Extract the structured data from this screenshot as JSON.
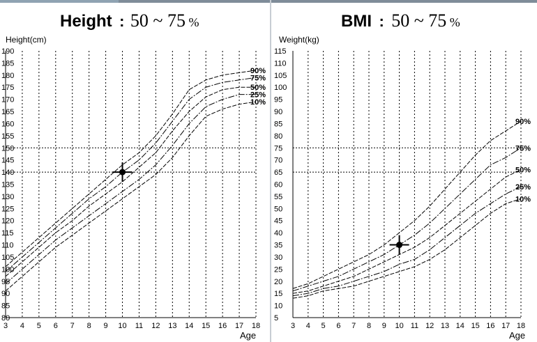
{
  "chart_data": [
    {
      "type": "line",
      "title": {
        "main": "Height",
        "sep": ":",
        "range": "50 ~ 75",
        "pct": "%"
      },
      "ylabel": "Height(cm)",
      "xlabel": "Age",
      "x": [
        3,
        4,
        5,
        6,
        7,
        8,
        9,
        10,
        11,
        12,
        13,
        14,
        15,
        16,
        17,
        18
      ],
      "x_tick_labels": [
        "3",
        "4",
        "5",
        "6",
        "7",
        "8",
        "9",
        "10",
        "11",
        "12",
        "13",
        "14",
        "15",
        "16",
        "17",
        "18"
      ],
      "xlim": [
        3,
        18
      ],
      "ylim": [
        80,
        190
      ],
      "yticks": [
        80,
        85,
        90,
        95,
        100,
        105,
        110,
        115,
        120,
        125,
        130,
        135,
        140,
        145,
        150,
        155,
        160,
        165,
        170,
        175,
        180,
        185,
        190
      ],
      "y_tick_labels": [
        "80",
        "85",
        "90",
        "95",
        "100",
        "105",
        "110",
        "115",
        "120",
        "125",
        "130",
        "135",
        "140",
        "145",
        "150",
        "155",
        "160",
        "165",
        "170",
        "175",
        "180",
        "185",
        "190"
      ],
      "series": [
        {
          "name": "10%",
          "values": [
            91,
            97,
            103,
            109,
            114,
            119,
            124,
            129,
            134,
            139,
            146,
            155,
            163,
            166,
            168,
            169
          ]
        },
        {
          "name": "25%",
          "values": [
            94,
            100,
            106,
            112,
            117,
            122,
            127,
            132,
            137,
            143,
            151,
            160,
            167,
            170,
            172,
            172
          ]
        },
        {
          "name": "50%",
          "values": [
            97,
            103,
            109,
            115,
            120,
            126,
            131,
            136,
            142,
            148,
            157,
            165,
            171,
            174,
            175,
            175
          ]
        },
        {
          "name": "75%",
          "values": [
            99,
            105,
            111,
            117,
            123,
            129,
            134,
            140,
            145,
            152,
            161,
            170,
            175,
            177,
            178,
            179
          ]
        },
        {
          "name": "90%",
          "values": [
            101,
            107,
            113,
            119,
            125,
            131,
            137,
            143,
            148,
            155,
            164,
            174,
            178,
            180,
            181,
            182
          ]
        }
      ],
      "marker": {
        "x": 10,
        "y": 140
      },
      "reference_lines": {
        "horizontal": [
          140,
          150
        ],
        "vertical": [
          10
        ]
      },
      "grid": "vertical-dashed",
      "legend": "right-end-labels"
    },
    {
      "type": "line",
      "title": {
        "main": "BMI",
        "sep": ":",
        "range": "50 ~ 75",
        "pct": "%"
      },
      "ylabel": "Weight(kg)",
      "xlabel": "Age",
      "x": [
        3,
        4,
        5,
        6,
        7,
        8,
        9,
        10,
        11,
        12,
        13,
        14,
        15,
        16,
        17,
        18
      ],
      "x_tick_labels": [
        "3",
        "4",
        "5",
        "6",
        "7",
        "8",
        "9",
        "10",
        "11",
        "12",
        "13",
        "14",
        "15",
        "16",
        "17",
        "18"
      ],
      "xlim": [
        3,
        18
      ],
      "ylim": [
        5,
        115
      ],
      "yticks": [
        5,
        10,
        15,
        20,
        25,
        30,
        35,
        40,
        45,
        50,
        55,
        60,
        65,
        70,
        75,
        80,
        85,
        90,
        95,
        100,
        105,
        110,
        115
      ],
      "y_tick_labels": [
        "5",
        "10",
        "15",
        "20",
        "25",
        "30",
        "35",
        "40",
        "45",
        "50",
        "55",
        "60",
        "65",
        "70",
        "75",
        "80",
        "85",
        "90",
        "95",
        "100",
        "105",
        "110",
        "115"
      ],
      "series": [
        {
          "name": "10%",
          "values": [
            13,
            14,
            16,
            17,
            18,
            20,
            22,
            24,
            26,
            29,
            33,
            38,
            43,
            48,
            52,
            54
          ]
        },
        {
          "name": "25%",
          "values": [
            14,
            15,
            17,
            18,
            20,
            22,
            24,
            27,
            29,
            33,
            38,
            43,
            48,
            52,
            56,
            59
          ]
        },
        {
          "name": "50%",
          "values": [
            15,
            16,
            18,
            20,
            22,
            25,
            28,
            31,
            34,
            38,
            43,
            48,
            53,
            58,
            63,
            66
          ]
        },
        {
          "name": "75%",
          "values": [
            16,
            18,
            20,
            22,
            25,
            28,
            31,
            35,
            39,
            44,
            50,
            56,
            62,
            68,
            71,
            75
          ]
        },
        {
          "name": "90%",
          "values": [
            17,
            19,
            22,
            25,
            28,
            31,
            35,
            40,
            45,
            51,
            58,
            65,
            72,
            78,
            82,
            86
          ]
        }
      ],
      "marker": {
        "x": 10,
        "y": 35
      },
      "reference_lines": {
        "horizontal": [
          75,
          65
        ],
        "vertical": [
          10
        ]
      },
      "grid": "vertical-dashed",
      "legend": "right-end-labels"
    }
  ]
}
